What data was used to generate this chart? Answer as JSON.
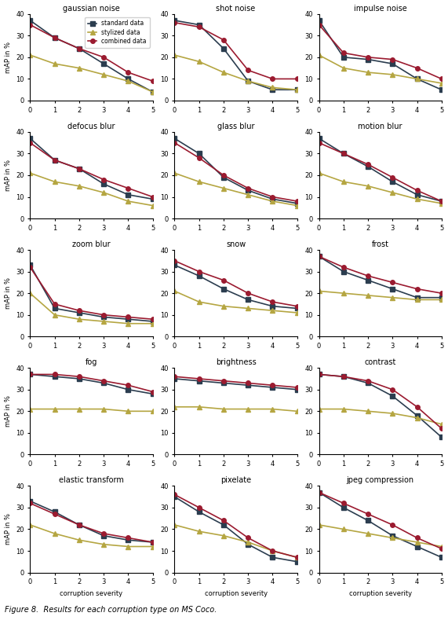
{
  "subplots": [
    {
      "title": "gaussian noise",
      "standard": [
        37,
        29,
        24,
        17,
        10,
        4
      ],
      "stylized": [
        21,
        17,
        15,
        12,
        9,
        4
      ],
      "combined": [
        35,
        29,
        24,
        20,
        13,
        9
      ]
    },
    {
      "title": "shot noise",
      "standard": [
        37,
        35,
        24,
        9,
        5,
        5
      ],
      "stylized": [
        21,
        18,
        13,
        9,
        6,
        5
      ],
      "combined": [
        36,
        34,
        28,
        14,
        10,
        10
      ]
    },
    {
      "title": "impulse noise",
      "standard": [
        37,
        20,
        19,
        17,
        10,
        5
      ],
      "stylized": [
        21,
        15,
        13,
        12,
        10,
        8
      ],
      "combined": [
        35,
        22,
        20,
        19,
        15,
        10
      ]
    },
    {
      "title": "defocus blur",
      "standard": [
        37,
        27,
        23,
        16,
        11,
        9
      ],
      "stylized": [
        21,
        17,
        15,
        12,
        8,
        6
      ],
      "combined": [
        35,
        27,
        23,
        18,
        14,
        10
      ]
    },
    {
      "title": "glass blur",
      "standard": [
        37,
        30,
        19,
        13,
        9,
        7
      ],
      "stylized": [
        21,
        17,
        14,
        11,
        8,
        6
      ],
      "combined": [
        35,
        28,
        20,
        14,
        10,
        8
      ]
    },
    {
      "title": "motion blur",
      "standard": [
        37,
        30,
        24,
        17,
        11,
        8
      ],
      "stylized": [
        21,
        17,
        15,
        12,
        9,
        7
      ],
      "combined": [
        35,
        30,
        25,
        19,
        13,
        8
      ]
    },
    {
      "title": "zoom blur",
      "standard": [
        33,
        13,
        11,
        9,
        8,
        7
      ],
      "stylized": [
        20,
        10,
        8,
        7,
        6,
        6
      ],
      "combined": [
        32,
        15,
        12,
        10,
        9,
        8
      ]
    },
    {
      "title": "snow",
      "standard": [
        33,
        28,
        22,
        17,
        14,
        13
      ],
      "stylized": [
        21,
        16,
        14,
        13,
        12,
        11
      ],
      "combined": [
        35,
        30,
        26,
        20,
        16,
        14
      ]
    },
    {
      "title": "frost",
      "standard": [
        37,
        30,
        26,
        22,
        18,
        18
      ],
      "stylized": [
        21,
        20,
        19,
        18,
        17,
        17
      ],
      "combined": [
        37,
        32,
        28,
        25,
        22,
        20
      ]
    },
    {
      "title": "fog",
      "standard": [
        37,
        36,
        35,
        33,
        30,
        28
      ],
      "stylized": [
        21,
        21,
        21,
        21,
        20,
        20
      ],
      "combined": [
        37,
        37,
        36,
        34,
        32,
        29
      ]
    },
    {
      "title": "brightness",
      "standard": [
        35,
        34,
        33,
        32,
        31,
        30
      ],
      "stylized": [
        22,
        22,
        21,
        21,
        21,
        20
      ],
      "combined": [
        36,
        35,
        34,
        33,
        32,
        31
      ]
    },
    {
      "title": "contrast",
      "standard": [
        37,
        36,
        33,
        27,
        18,
        8
      ],
      "stylized": [
        21,
        21,
        20,
        19,
        17,
        14
      ],
      "combined": [
        37,
        36,
        34,
        30,
        22,
        12
      ]
    },
    {
      "title": "elastic transform",
      "standard": [
        33,
        28,
        22,
        17,
        15,
        14
      ],
      "stylized": [
        22,
        18,
        15,
        13,
        12,
        12
      ],
      "combined": [
        32,
        27,
        22,
        18,
        16,
        14
      ]
    },
    {
      "title": "pixelate",
      "standard": [
        35,
        28,
        22,
        13,
        7,
        5
      ],
      "stylized": [
        22,
        19,
        17,
        14,
        10,
        7
      ],
      "combined": [
        36,
        30,
        24,
        16,
        10,
        7
      ]
    },
    {
      "title": "jpeg compression",
      "standard": [
        37,
        30,
        24,
        17,
        12,
        7
      ],
      "stylized": [
        22,
        20,
        18,
        16,
        14,
        12
      ],
      "combined": [
        37,
        32,
        27,
        22,
        16,
        11
      ]
    }
  ],
  "colors": {
    "standard": "#2b3d4f",
    "stylized": "#b5a642",
    "combined": "#9b1b30"
  },
  "markers": {
    "standard": "s",
    "stylized": "^",
    "combined": "o"
  },
  "xlim": [
    0,
    5
  ],
  "ylim": [
    0,
    40
  ],
  "xlabel_bottom": "corruption severity",
  "ylabel": "mAP in %",
  "figure_caption": "Figure 8.  Results for each corruption type on MS Coco.",
  "legend_labels": [
    "standard data",
    "stylized data",
    "combined data"
  ]
}
